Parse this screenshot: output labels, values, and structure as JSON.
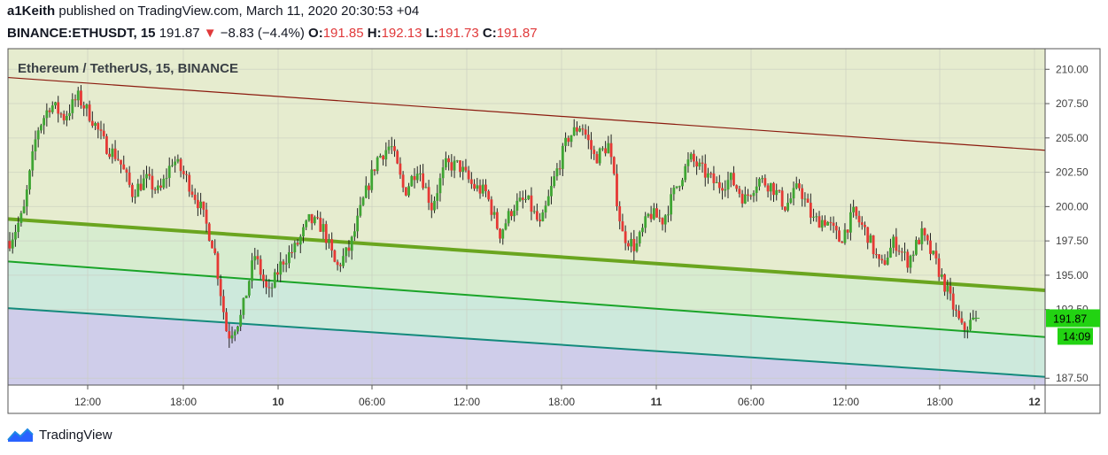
{
  "header": {
    "author": "a1Keith",
    "published_text": "published on TradingView.com, March 11, 2020 20:30:53 +04",
    "symbol": "BINANCE:ETHUSDT, 15",
    "last": "191.87",
    "change": "−8.83 (−4.4%)",
    "open_label": "O:",
    "open": "191.85",
    "high_label": "H:",
    "high": "192.13",
    "low_label": "L:",
    "low": "191.73",
    "close_label": "C:",
    "close": "191.87"
  },
  "chart_data": {
    "type": "candlestick",
    "title": "Ethereum / TetherUS, 15, BINANCE",
    "y_ticks": [
      "210.00",
      "207.50",
      "205.00",
      "202.50",
      "200.00",
      "197.50",
      "195.00",
      "192.50",
      "187.50"
    ],
    "ylim": [
      187.0,
      211.5
    ],
    "x_ticks": [
      "12:00",
      "18:00",
      "10",
      "06:00",
      "12:00",
      "18:00",
      "11",
      "06:00",
      "12:00",
      "18:00",
      "12"
    ],
    "x_ticks_bold": [
      "10",
      "11",
      "12"
    ],
    "last_price_label": "191.87",
    "countdown_label": "14:09",
    "channel_lines": [
      {
        "color": "#8b1a0e",
        "start": 209.4,
        "end": 204.1
      },
      {
        "color": "#6aa51f",
        "start": 199.1,
        "end": 193.9
      },
      {
        "color": "#1aa428",
        "start": 196.0,
        "end": 190.5
      },
      {
        "color": "#138a7c",
        "start": 192.6,
        "end": 187.6
      }
    ],
    "colors": {
      "up": "#3fa533",
      "down": "#e53935",
      "wick": "#222222"
    },
    "price_path": [
      197.5,
      199.5,
      205.5,
      207.5,
      206.5,
      208.0,
      206.5,
      204.5,
      203.5,
      201.0,
      202.0,
      201.0,
      203.5,
      202.0,
      200.0,
      197.0,
      190.5,
      192.0,
      196.5,
      193.5,
      196.0,
      197.0,
      199.0,
      198.5,
      195.5,
      197.0,
      200.5,
      203.5,
      204.5,
      201.0,
      203.0,
      200.0,
      203.0,
      203.0,
      201.5,
      201.0,
      198.0,
      200.0,
      200.5,
      198.5,
      202.0,
      205.0,
      206.0,
      203.5,
      204.5,
      198.0,
      197.0,
      199.5,
      199.0,
      201.5,
      203.5,
      202.5,
      201.5,
      202.0,
      200.5,
      202.0,
      201.5,
      200.0,
      201.5,
      199.0,
      199.0,
      197.5,
      199.5,
      198.0,
      195.5,
      197.5,
      196.0,
      198.0,
      196.0,
      193.5,
      191.0,
      191.9
    ]
  },
  "footer": {
    "brand": "TradingView"
  }
}
